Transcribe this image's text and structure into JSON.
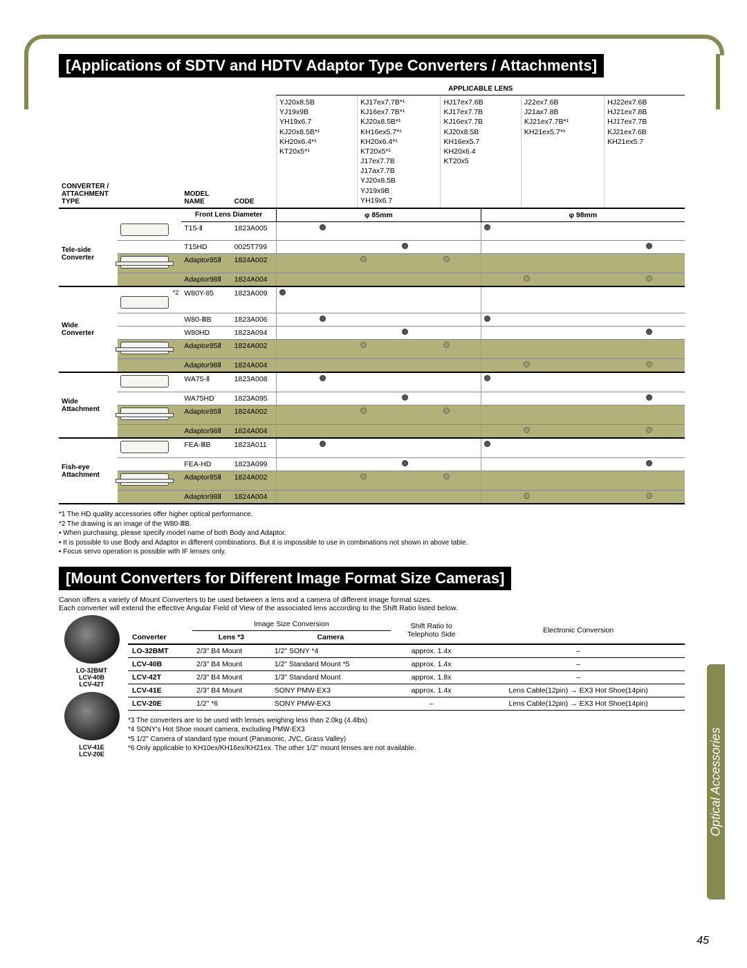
{
  "page": {
    "number": "45",
    "sidebar_label": "Optical Accessories"
  },
  "section1": {
    "title": "[Applications of SDTV and HDTV Adaptor Type Converters / Attachments]",
    "applicable_lens_header": "APPLICABLE LENS",
    "header_labels": {
      "converter_type": "CONVERTER /\nATTACHMENT\nTYPE",
      "model_name": "MODEL\nNAME",
      "code": "CODE"
    },
    "front_lens_diam": "Front Lens Diameter",
    "phi85": "φ 85mm",
    "phi98": "φ 98mm",
    "lens_cols": [
      [
        "YJ20x8.5B",
        "YJ19x9B",
        "YH19x6.7",
        "KJ20x8.5B*¹",
        "KH20x6.4*¹",
        "KT20x5*¹"
      ],
      [
        "KJ17ex7.7B*¹",
        "KJ16ex7.7B*¹",
        "KJ20x8.5B*¹",
        "KH16ex5.7*¹",
        "KH20x6.4*¹",
        "KT20x5*¹",
        "J17ex7.7B",
        "J17ax7.7B",
        "YJ20x8.5B",
        "YJ19x9B",
        "YH19x6.7"
      ],
      [
        "HJ17ex7.6B",
        "KJ17ex7.7B",
        "KJ16ex7.7B",
        "KJ20x8.5B",
        "KH16ex5.7",
        "KH20x6.4",
        "KT20x5"
      ],
      [
        "J22ex7.6B",
        "J21ax7.8B",
        "KJ21ex7.7B*¹",
        "KH21ex5.7*¹"
      ],
      [
        "HJ22ex7.6B",
        "HJ21ex7.8B",
        "HJ17ex7.7B",
        "KJ21ex7.6B",
        "KH21ex5.7"
      ]
    ],
    "groups": [
      {
        "label": "Tele-side\nConverter",
        "rows": [
          {
            "model": "T15-Ⅱ",
            "code": "1823A005",
            "dots": [
              0,
              1,
              0,
              0,
              0,
              1,
              0,
              0,
              0,
              0
            ],
            "olive": false,
            "icon": "box"
          },
          {
            "model": "T15HD",
            "code": "0025T799",
            "dots": [
              0,
              0,
              0,
              1,
              0,
              0,
              0,
              0,
              0,
              1
            ],
            "olive": false,
            "icon": ""
          },
          {
            "model": "Adaptor85Ⅱ",
            "code": "1824A002",
            "dots": [
              0,
              0,
              1,
              0,
              1,
              0,
              0,
              0,
              0,
              0
            ],
            "olive": true,
            "icon": "bar"
          },
          {
            "model": "Adaptor98Ⅱ",
            "code": "1824A004",
            "dots": [
              0,
              0,
              0,
              0,
              0,
              0,
              1,
              0,
              0,
              1
            ],
            "olive": true,
            "icon": ""
          }
        ]
      },
      {
        "label": "Wide\nConverter",
        "note": "*2",
        "rows": [
          {
            "model": "W80Y-85",
            "code": "1823A009",
            "dots": [
              1,
              0,
              0,
              0,
              0,
              0,
              0,
              0,
              0,
              0
            ],
            "olive": false,
            "icon": "box"
          },
          {
            "model": "W80-ⅢB",
            "code": "1823A006",
            "dots": [
              0,
              1,
              0,
              0,
              0,
              1,
              0,
              0,
              0,
              0
            ],
            "olive": false,
            "icon": ""
          },
          {
            "model": "W80HD",
            "code": "1823A094",
            "dots": [
              0,
              0,
              0,
              1,
              0,
              0,
              0,
              0,
              0,
              1
            ],
            "olive": false,
            "icon": ""
          },
          {
            "model": "Adaptor85Ⅱ",
            "code": "1824A002",
            "dots": [
              0,
              0,
              1,
              0,
              1,
              0,
              0,
              0,
              0,
              0
            ],
            "olive": true,
            "icon": "bar"
          },
          {
            "model": "Adaptor98Ⅱ",
            "code": "1824A004",
            "dots": [
              0,
              0,
              0,
              0,
              0,
              0,
              1,
              0,
              0,
              1
            ],
            "olive": true,
            "icon": ""
          }
        ]
      },
      {
        "label": "Wide\nAttachment",
        "rows": [
          {
            "model": "WA75-Ⅱ",
            "code": "1823A008",
            "dots": [
              0,
              1,
              0,
              0,
              0,
              1,
              0,
              0,
              0,
              0
            ],
            "olive": false,
            "icon": "box"
          },
          {
            "model": "WA75HD",
            "code": "1823A095",
            "dots": [
              0,
              0,
              0,
              1,
              0,
              0,
              0,
              0,
              0,
              1
            ],
            "olive": false,
            "icon": ""
          },
          {
            "model": "Adaptor85Ⅱ",
            "code": "1824A002",
            "dots": [
              0,
              0,
              1,
              0,
              1,
              0,
              0,
              0,
              0,
              0
            ],
            "olive": true,
            "icon": "bar"
          },
          {
            "model": "Adaptor98Ⅱ",
            "code": "1824A004",
            "dots": [
              0,
              0,
              0,
              0,
              0,
              0,
              1,
              0,
              0,
              1
            ],
            "olive": true,
            "icon": ""
          }
        ]
      },
      {
        "label": "Fish-eye\nAttachment",
        "rows": [
          {
            "model": "FEA-ⅢB",
            "code": "1823A011",
            "dots": [
              0,
              1,
              0,
              0,
              0,
              1,
              0,
              0,
              0,
              0
            ],
            "olive": false,
            "icon": "box"
          },
          {
            "model": "FEA-HD",
            "code": "1823A099",
            "dots": [
              0,
              0,
              0,
              1,
              0,
              0,
              0,
              0,
              0,
              1
            ],
            "olive": false,
            "icon": ""
          },
          {
            "model": "Adaptor85Ⅱ",
            "code": "1824A002",
            "dots": [
              0,
              0,
              1,
              0,
              1,
              0,
              0,
              0,
              0,
              0
            ],
            "olive": true,
            "icon": "bar"
          },
          {
            "model": "Adaptor98Ⅱ",
            "code": "1824A004",
            "dots": [
              0,
              0,
              0,
              0,
              0,
              0,
              1,
              0,
              0,
              1
            ],
            "olive": true,
            "icon": ""
          }
        ]
      }
    ],
    "footnotes": [
      "*1  The HD quality accessories offer higher optical performance.",
      "*2  The drawing is an image of the W80-ⅢB.",
      "When purchasing, please specify model name of both Body and Adaptor.",
      "It is possible to use Body and Adaptor in different combinations. But it is impossible to use in combinations not shown in above table.",
      "Focus servo operation is possible with IF lenses only."
    ]
  },
  "section2": {
    "title": "[Mount Converters for Different Image Format Size Cameras]",
    "intro1": "Canon offers a variety of Mount Converters to be used between a lens and a camera of different image format sizes.",
    "intro2": "Each converter will extend the effective Angular Field of View of the associated lens according to the Shift Ratio listed below.",
    "col_headers": {
      "converter": "Converter",
      "image_size": "Image Size Conversion",
      "lens": "Lens  *3",
      "camera": "Camera",
      "shift": "Shift Ratio to\nTelephoto Side",
      "elec": "Electronic Conversion"
    },
    "rows": [
      {
        "conv": "LO-32BMT",
        "lens": "2/3\"  B4 Mount",
        "camera": "1/2\"  SONY  *4",
        "shift": "approx.  1.4x",
        "elec": "–"
      },
      {
        "conv": "LCV-40B",
        "lens": "2/3\"  B4 Mount",
        "camera": "1/2\"  Standard Mount  *5",
        "shift": "approx.  1.4x",
        "elec": "–"
      },
      {
        "conv": "LCV-42T",
        "lens": "2/3\"  B4 Mount",
        "camera": "1/3\"  Standard Mount",
        "shift": "approx.  1.8x",
        "elec": "–"
      },
      {
        "conv": "LCV-41E",
        "lens": "2/3\"  B4 Mount",
        "camera": "SONY PMW-EX3",
        "shift": "approx.  1.4x",
        "elec": "Lens Cable(12pin) → EX3 Hot Shoe(14pin)"
      },
      {
        "conv": "LCV-20E",
        "lens": "1/2\"  *6",
        "camera": "SONY PMW-EX3",
        "shift": "–",
        "elec": "Lens Cable(12pin) → EX3 Hot Shoe(14pin)"
      }
    ],
    "left_labels": {
      "top": "LO-32BMT\nLCV-40B\nLCV-42T",
      "bottom": "LCV-41E\nLCV-20E"
    },
    "footnotes": [
      "*3  The converters are to be used with lenses weighing less than 2.0kg (4.4lbs)",
      "*4  SONY's Hot Shoe mount camera, excluding PMW-EX3",
      "*5  1/2\" Camera of standard type mount (Panasonic, JVC, Grass Valley)",
      "*6  Only applicable to KH10ex/KH16ex/KH21ex. The other 1/2\" mount lenses are not available."
    ]
  }
}
